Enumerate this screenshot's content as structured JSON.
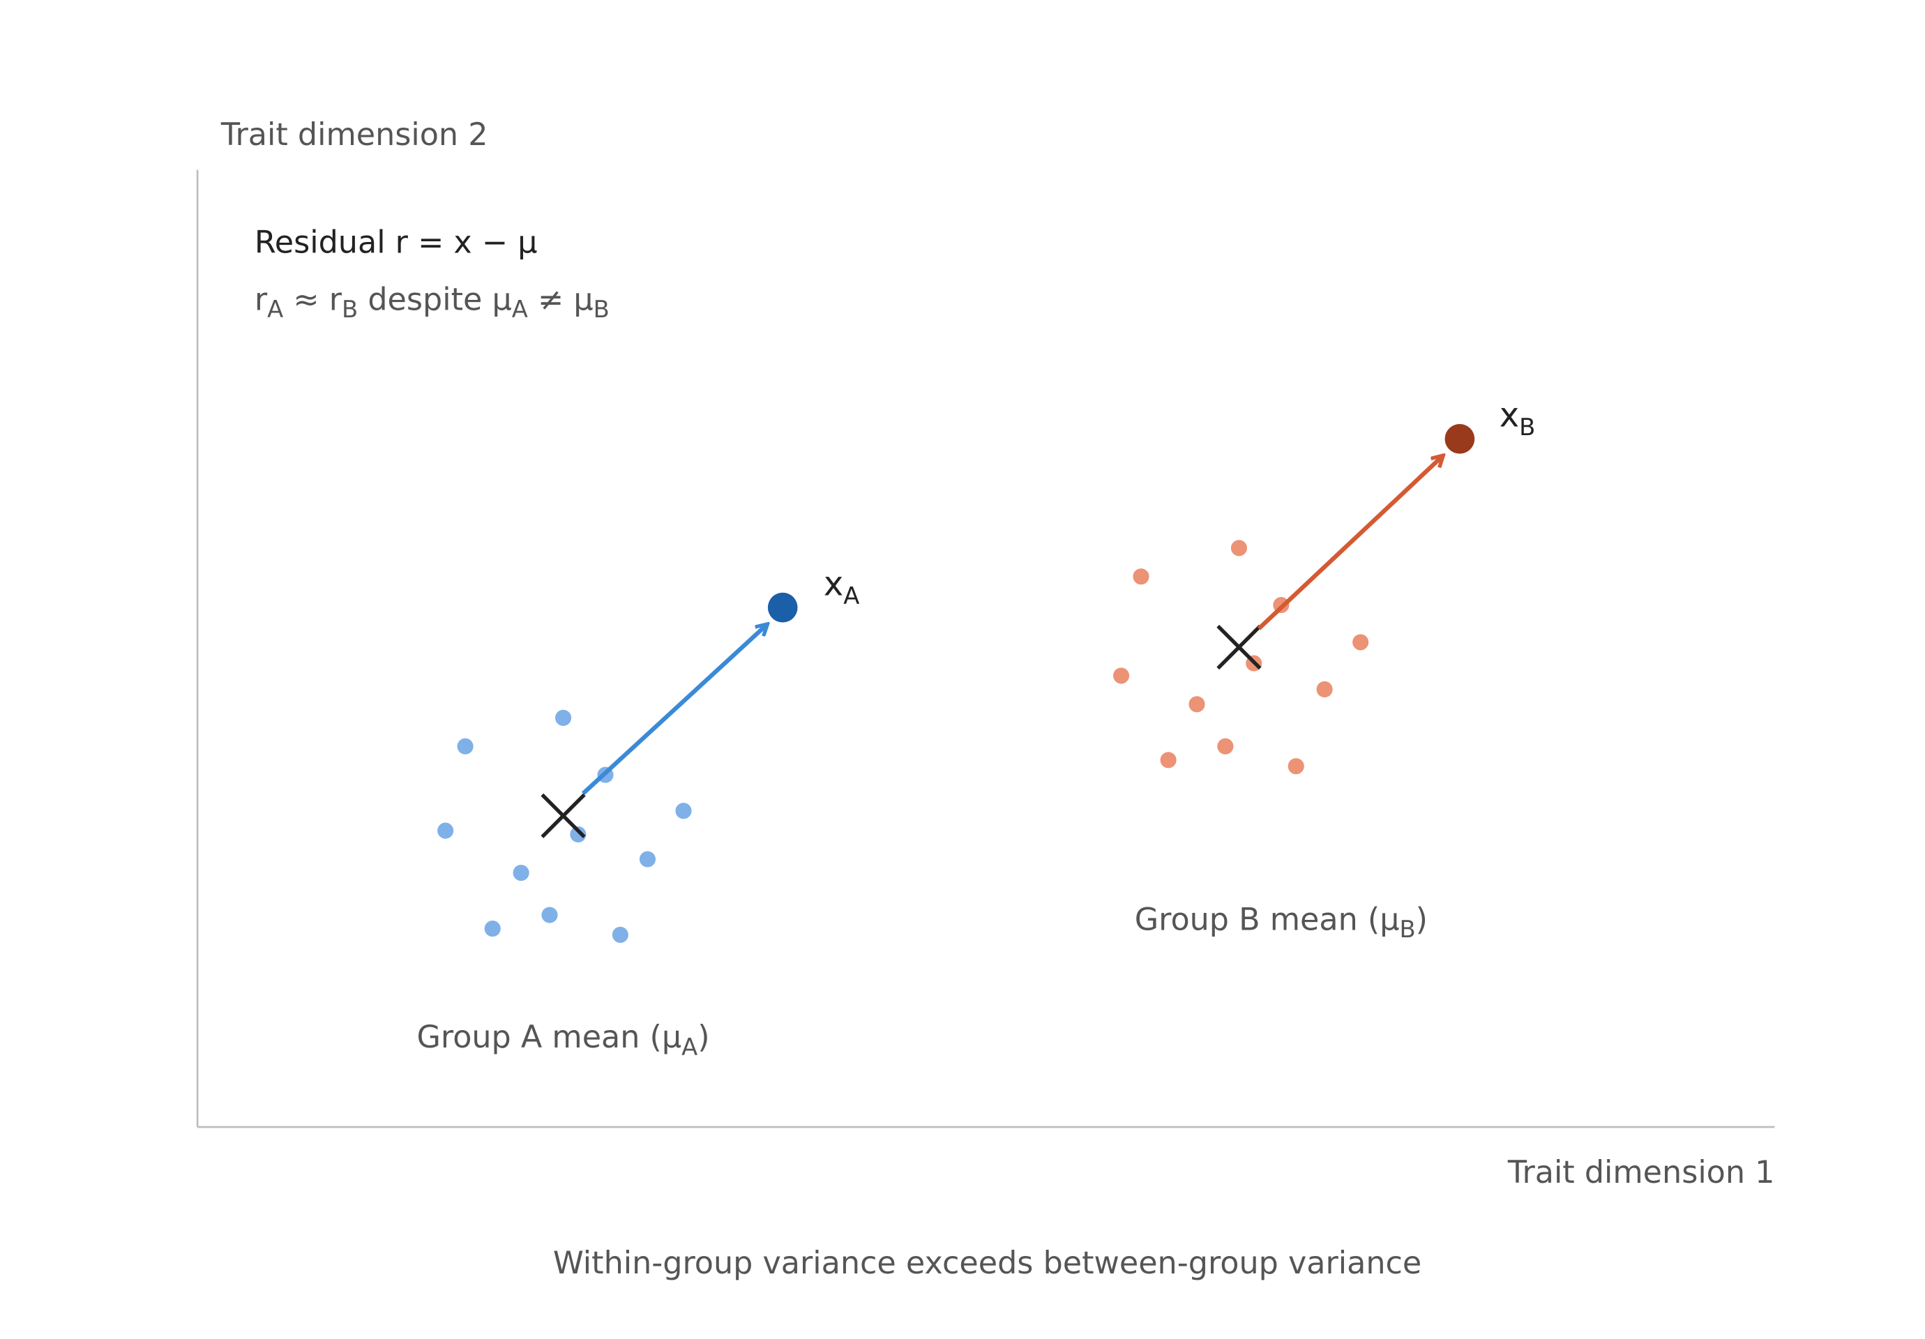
{
  "axes": {
    "y_label": "Trait dimension 2",
    "x_label": "Trait dimension 1"
  },
  "annotation": {
    "line1": "Residual r = x − μ",
    "line2": [
      "r",
      "A",
      " ≈ r",
      "B",
      " despite μ",
      "A",
      " ≠ μ",
      "B"
    ]
  },
  "points": {
    "a": [
      "x",
      "A"
    ],
    "b": [
      "x",
      "B"
    ]
  },
  "groups": {
    "a": [
      "Group A mean (μ",
      "A",
      ")"
    ],
    "b": [
      "Group B mean (μ",
      "B",
      ")"
    ]
  },
  "caption": "Within-group variance exceeds between-group variance"
}
